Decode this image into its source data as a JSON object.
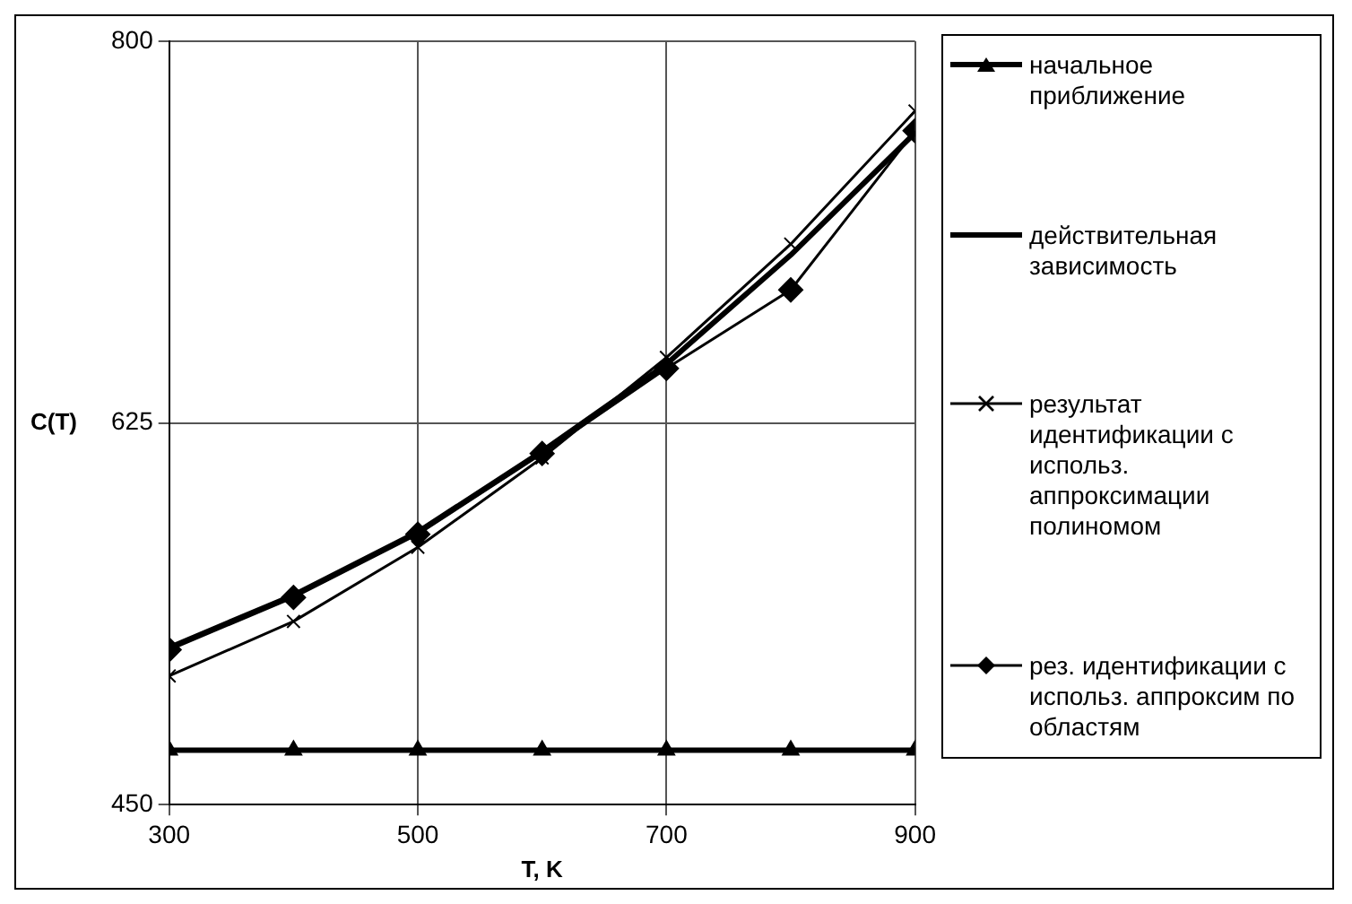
{
  "chart_data": {
    "type": "line",
    "xlabel": "T, K",
    "ylabel": "C(T)",
    "x": [
      300,
      400,
      500,
      600,
      700,
      800,
      900
    ],
    "xlim": [
      300,
      900
    ],
    "xticks": [
      300,
      500,
      700,
      900
    ],
    "ylim": [
      450,
      800
    ],
    "yticks": [
      450,
      625,
      800
    ],
    "grid": true,
    "legend": "right",
    "line_style": "solid",
    "series": [
      {
        "name": "начальное приближение",
        "color": "#000000",
        "marker": "triangle",
        "values": [
          475,
          475,
          475,
          475,
          475,
          475,
          475
        ]
      },
      {
        "name": "действительная зависимость",
        "color": "#000000",
        "marker": "none",
        "values": [
          522,
          546,
          575,
          612,
          652,
          702,
          758
        ]
      },
      {
        "name": "результат идентификации с использ. аппроксимации полиномом",
        "color": "#000000",
        "marker": "cross",
        "values": [
          509,
          534,
          568,
          609,
          655,
          707,
          768
        ]
      },
      {
        "name": "рез. идентификации с использ. аппроксим по областям",
        "color": "#000000",
        "marker": "diamond",
        "values": [
          521,
          545,
          574,
          611,
          650,
          686,
          759
        ]
      }
    ]
  }
}
